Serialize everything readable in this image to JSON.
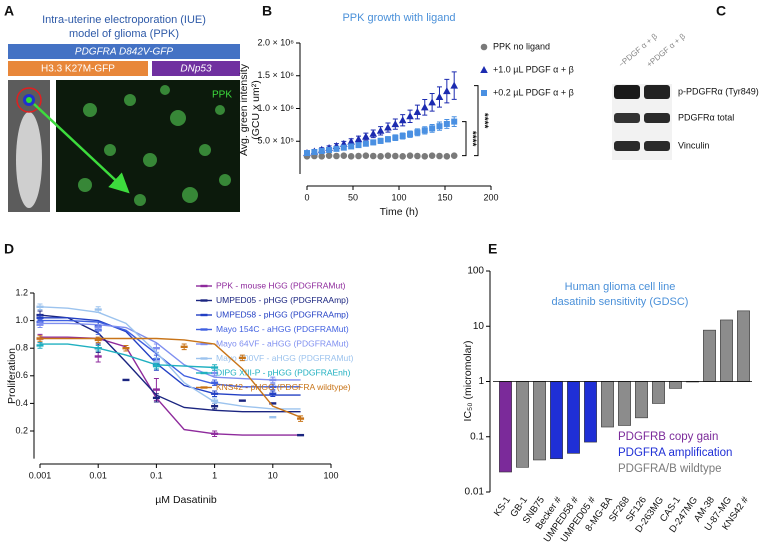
{
  "panel_labels": [
    "A",
    "B",
    "C",
    "D",
    "E"
  ],
  "diagram": {
    "title": [
      "Intra-uterine electroporation (IUE)",
      "model of glioma (PPK)"
    ],
    "constructs": [
      "PDGFRA D842V-GFP",
      "H3.3 K27M-GFP",
      "DNp53"
    ],
    "image_label": "PPK"
  },
  "blot": {
    "conditions": [
      "−PDGF α + β",
      "+PDGF α + β"
    ],
    "bands": [
      "p-PDGFRα (Tyr849)",
      "PDGFRα total",
      "Vinculin"
    ]
  },
  "chart_data": [
    {
      "type": "scatter",
      "title": "PPK growth with ligand",
      "xlabel": "Time (h)",
      "ylabel": [
        "Avg. green intensity",
        "(GCU x um²)"
      ],
      "xlim": [
        0,
        200
      ],
      "xticks": [
        0,
        50,
        100,
        150,
        200
      ],
      "ylim": [
        0,
        2000000
      ],
      "yticks": [
        {
          "value": 500000,
          "label": "5.0 × 10⁵"
        },
        {
          "value": 1000000,
          "label": "1.0 × 10⁶"
        },
        {
          "value": 1500000,
          "label": "1.5 × 10⁶"
        },
        {
          "value": 2000000,
          "label": "2.0 × 10⁶"
        }
      ],
      "annotations": [
        "****",
        "****"
      ],
      "series": [
        {
          "name": "PPK no ligand",
          "color": "#7a7a7a",
          "marker": "circle",
          "x": [
            0,
            8,
            16,
            24,
            32,
            40,
            48,
            56,
            64,
            72,
            80,
            88,
            96,
            104,
            112,
            120,
            128,
            136,
            144,
            152,
            160
          ],
          "values": [
            270000,
            275000,
            270000,
            280000,
            275000,
            280000,
            270000,
            275000,
            280000,
            275000,
            270000,
            280000,
            275000,
            270000,
            280000,
            275000,
            270000,
            280000,
            275000,
            270000,
            280000
          ],
          "errors": [
            12000,
            12000,
            12000,
            12000,
            12000,
            12000,
            12000,
            12000,
            12000,
            12000,
            12000,
            12000,
            12000,
            12000,
            12000,
            12000,
            12000,
            12000,
            12000,
            12000,
            12000
          ]
        },
        {
          "name": "+1.0 µL PDGF α + β",
          "color": "#1c2bb0",
          "marker": "triangle",
          "x": [
            0,
            8,
            16,
            24,
            32,
            40,
            48,
            56,
            64,
            72,
            80,
            88,
            96,
            104,
            112,
            120,
            128,
            136,
            144,
            152,
            160
          ],
          "values": [
            320000,
            344000,
            370000,
            397000,
            427000,
            459000,
            494000,
            531000,
            571000,
            614000,
            660000,
            709000,
            762000,
            820000,
            881000,
            947000,
            1018000,
            1094000,
            1176000,
            1265000,
            1350000
          ],
          "errors": [
            25000,
            28000,
            30000,
            33000,
            36000,
            40000,
            44000,
            48000,
            53000,
            58000,
            64000,
            70000,
            78000,
            86000,
            95000,
            105000,
            120000,
            135000,
            155000,
            180000,
            210000
          ]
        },
        {
          "name": "+0.2 µL PDGF α + β",
          "color": "#4a90e2",
          "marker": "square",
          "x": [
            0,
            8,
            16,
            24,
            32,
            40,
            48,
            56,
            64,
            72,
            80,
            88,
            96,
            104,
            112,
            120,
            128,
            136,
            144,
            152,
            160
          ],
          "values": [
            320000,
            335000,
            351000,
            367000,
            384000,
            402000,
            421000,
            441000,
            462000,
            483000,
            506000,
            530000,
            554000,
            580000,
            608000,
            636000,
            666000,
            697000,
            730000,
            764000,
            800000
          ],
          "errors": [
            20000,
            21000,
            22000,
            24000,
            26000,
            28000,
            30000,
            32000,
            34000,
            36000,
            38000,
            40000,
            43000,
            46000,
            49000,
            52000,
            55000,
            59000,
            63000,
            68000,
            75000
          ]
        }
      ]
    },
    {
      "type": "scatter",
      "xlabel": "µM Dasatinib",
      "ylabel": "Proliferation",
      "xscale": "log",
      "xlim": [
        0.001,
        100
      ],
      "xticks": [
        0.001,
        0.01,
        0.1,
        1,
        10,
        100
      ],
      "ylim": [
        0,
        1.2
      ],
      "yticks": [
        0.2,
        0.4,
        0.6,
        0.8,
        {
          "value": 1.0,
          "label": "1.0"
        },
        1.2
      ],
      "fit_x": [
        0.001,
        0.003,
        0.01,
        0.03,
        0.1,
        0.3,
        1,
        3,
        10,
        30
      ],
      "series": [
        {
          "name": "PPK - mouse HGG (PDGFRAMut)",
          "color": "#8e2a9c",
          "marker": "dash",
          "x": [
            0.001,
            0.01,
            0.1,
            1
          ],
          "values": [
            0.87,
            0.74,
            0.5,
            0.18
          ],
          "errors": [
            0.03,
            0.04,
            0.08,
            0.02
          ],
          "fit": [
            0.88,
            0.88,
            0.87,
            0.81,
            0.44,
            0.21,
            0.18,
            0.17,
            0.17,
            0.17
          ]
        },
        {
          "name": "UMPED05 - pHGG (PDGFRAAmp)",
          "color": "#1b2580",
          "marker": "dash",
          "x": [
            0.001,
            0.01,
            0.03,
            0.1,
            1,
            3,
            10,
            30
          ],
          "values": [
            1.04,
            0.8,
            0.57,
            0.44,
            0.38,
            0.42,
            0.4,
            0.17
          ],
          "errors": [
            0.03,
            0.03,
            null,
            0.03,
            0.02,
            null,
            null,
            null
          ],
          "fit": [
            1.04,
            1.02,
            0.91,
            0.7,
            0.46,
            0.37,
            0.35,
            0.34,
            0.34,
            0.34
          ]
        },
        {
          "name": "UMPED58 - pHGG (PDGFRAAmp)",
          "color": "#2340c4",
          "marker": "dash",
          "x": [
            0.001,
            0.01,
            0.1,
            1,
            10
          ],
          "values": [
            1.02,
            0.96,
            0.68,
            0.47,
            0.47
          ],
          "errors": [
            0.02,
            0.03,
            0.04,
            0.02,
            0.02
          ],
          "fit": [
            1.02,
            1.02,
            1.0,
            0.92,
            0.69,
            0.53,
            0.47,
            0.46,
            0.46,
            0.46
          ]
        },
        {
          "name": "Mayo 154C - aHGG (PDGFRAMut)",
          "color": "#4060e0",
          "marker": "dash",
          "x": [
            0.001,
            0.01,
            0.1,
            1,
            10
          ],
          "values": [
            0.99,
            0.93,
            0.72,
            0.55,
            0.52
          ],
          "errors": [
            0.02,
            0.03,
            0.03,
            0.02,
            0.02
          ],
          "fit": [
            1.0,
            1.0,
            0.99,
            0.93,
            0.76,
            0.6,
            0.54,
            0.52,
            0.52,
            0.52
          ]
        },
        {
          "name": "Mayo 64VF - aHGG (PDGFRAMut)",
          "color": "#7f8ff0",
          "marker": "dash",
          "x": [
            0.001,
            0.01,
            0.1,
            1,
            10
          ],
          "values": [
            0.97,
            0.95,
            0.8,
            0.62,
            0.57
          ],
          "errors": [
            0.02,
            0.02,
            0.03,
            0.02,
            0.02
          ],
          "fit": [
            0.98,
            0.98,
            0.97,
            0.95,
            0.84,
            0.68,
            0.59,
            0.58,
            0.57,
            0.57
          ]
        },
        {
          "name": "Mayo 200VF - aHGG (PDGFRAMut)",
          "color": "#9cc3ee",
          "marker": "dash",
          "x": [
            0.001,
            0.01,
            0.1,
            1,
            10
          ],
          "values": [
            1.1,
            1.08,
            0.7,
            0.42,
            0.3
          ],
          "errors": [
            0.02,
            0.02,
            0.03,
            0.02,
            null
          ],
          "fit": [
            1.1,
            1.09,
            1.06,
            0.98,
            0.77,
            0.55,
            0.41,
            0.38,
            0.36,
            0.36
          ]
        },
        {
          "name": "DIPG XIII-P - pHGG (PDGFRAEnh)",
          "color": "#20b0c0",
          "marker": "dash",
          "x": [
            0.001,
            0.01,
            0.1,
            1
          ],
          "values": [
            0.82,
            0.8,
            0.67,
            0.66
          ],
          "errors": [
            0.02,
            0.02,
            0.02,
            0.02
          ],
          "fit": [
            0.83,
            0.83,
            0.8,
            0.75,
            0.68,
            0.67,
            0.66,
            null,
            null,
            null
          ]
        },
        {
          "name": "KNS42 - pHGG (PDGFRA wildtype)",
          "color": "#c87418",
          "marker": "dash",
          "x": [
            0.001,
            0.01,
            0.03,
            0.3,
            3,
            30
          ],
          "values": [
            0.87,
            0.86,
            0.8,
            0.81,
            0.73,
            0.29
          ],
          "errors": [
            0.02,
            0.02,
            0.02,
            0.02,
            0.02,
            0.02
          ],
          "fit": [
            0.87,
            0.87,
            0.87,
            0.87,
            0.87,
            0.86,
            0.83,
            0.65,
            0.38,
            0.3
          ]
        }
      ]
    },
    {
      "type": "bar",
      "title": [
        "Human glioma cell line",
        "dasatinib sensitivity (GDSC)"
      ],
      "ylabel": "IC₅₀ (micromolar)",
      "yscale": "log",
      "ylim": [
        0.01,
        100
      ],
      "yticks": [
        0.01,
        0.1,
        1,
        10,
        100
      ],
      "bar_base": 1,
      "categories": [
        "KS-1",
        "GB-1",
        "SNB75",
        "Becker #",
        "UMPED58 #",
        "UMPED05 #",
        "8-MG-BA",
        "SF268",
        "SF126",
        "D-263MG",
        "CAS-1",
        "D-247MG",
        "AM-38",
        "U-87-MG",
        "KNS42 #"
      ],
      "values": [
        0.023,
        0.028,
        0.038,
        0.04,
        0.05,
        0.08,
        0.15,
        0.16,
        0.22,
        0.4,
        0.75,
        0.98,
        8.5,
        13,
        19
      ],
      "colors": [
        "#7b2a9a",
        "#8c8c8c",
        "#8c8c8c",
        "#1f2fd6",
        "#1f2fd6",
        "#1f2fd6",
        "#8c8c8c",
        "#8c8c8c",
        "#8c8c8c",
        "#8c8c8c",
        "#8c8c8c",
        "#8c8c8c",
        "#8c8c8c",
        "#8c8c8c",
        "#8c8c8c"
      ],
      "legend": [
        {
          "label": "PDGFRB copy gain",
          "color": "#7b2a9a"
        },
        {
          "label": "PDGFRA amplification",
          "color": "#1f2fd6"
        },
        {
          "label": "PDGFRA/B wildtype",
          "color": "#7a7a7a"
        }
      ]
    }
  ]
}
